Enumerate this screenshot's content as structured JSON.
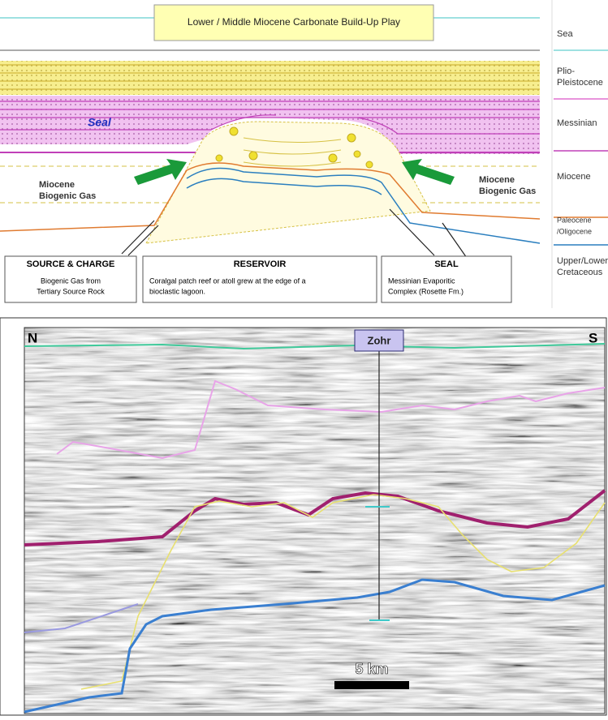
{
  "diagram": {
    "title": "Lower / Middle Miocene Carbonate Build-Up Play",
    "legend": [
      {
        "lines": [
          "Sea"
        ]
      },
      {
        "lines": [
          "Plio-",
          "Pleistocene"
        ]
      },
      {
        "lines": [
          "Messinian"
        ]
      },
      {
        "lines": [
          "Miocene"
        ]
      },
      {
        "lines": [
          "Paleocene",
          "/Oligocene"
        ]
      },
      {
        "lines": [
          "Upper/Lower",
          "Cretaceous"
        ]
      }
    ],
    "labels": {
      "seal": "Seal",
      "gas_left": [
        "Miocene",
        "Biogenic Gas"
      ],
      "gas_right": [
        "Miocene",
        "Biogenic Gas"
      ]
    },
    "boxes": [
      {
        "title": "SOURCE & CHARGE",
        "lines": [
          "Biogenic Gas from",
          "Tertiary Source Rock"
        ]
      },
      {
        "title": "RESERVOIR",
        "lines": [
          "Coralgal patch reef or atoll grew at the edge of a",
          "bioclastic lagoon."
        ]
      },
      {
        "title": "SEAL",
        "lines": [
          "Messinian Evaporitic",
          "Complex (Rosette Fm.)"
        ]
      }
    ]
  },
  "seismic": {
    "north": "N",
    "south": "S",
    "well": "Zohr",
    "scale": "5 km"
  }
}
